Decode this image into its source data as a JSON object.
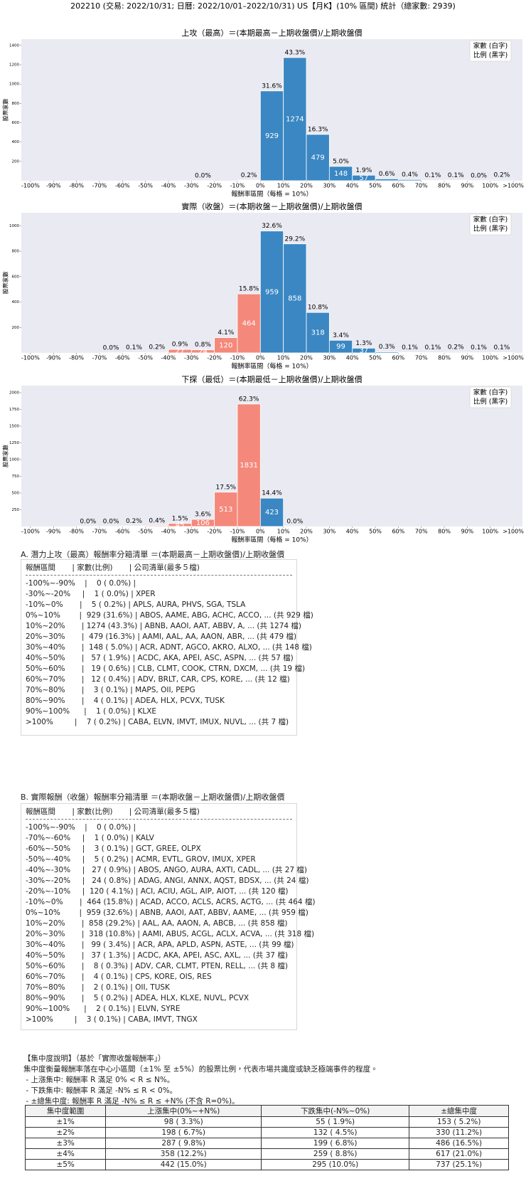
{
  "header": {
    "title": "202210 (交易: 2022/10/31; 日曆: 2022/10/01–2022/10/31) US【月K】(10% 區間) 統計（總家數: 2939)"
  },
  "chart_data": [
    {
      "type": "histogram",
      "title": "上攻（最高）＝(本期最高－上期收盤價)/上期收盤價",
      "xlabel": "報酬率區間（每格 = 10%）",
      "ylabel": "股票家數",
      "bins": [
        -100,
        -90,
        -80,
        -70,
        -60,
        -50,
        -40,
        -30,
        -20,
        -10,
        0,
        10,
        20,
        30,
        40,
        50,
        60,
        70,
        80,
        90,
        100,
        110
      ],
      "values": [
        0,
        0,
        0,
        0,
        0,
        0,
        0,
        1,
        0,
        5,
        929,
        1274,
        479,
        148,
        57,
        19,
        12,
        3,
        4,
        1,
        7
      ],
      "percent_labels": [
        null,
        null,
        null,
        null,
        null,
        null,
        null,
        "0.0%",
        null,
        "0.2%",
        "31.6%",
        "43.3%",
        "16.3%",
        "5.0%",
        "1.9%",
        "0.6%",
        "0.4%",
        "0.1%",
        "0.1%",
        "0.0%",
        "0.2%"
      ],
      "xlim": [
        -104,
        114
      ],
      "xticks": [
        {
          "value": -100,
          "label": "-100%"
        },
        {
          "value": -90,
          "label": "-90%"
        },
        {
          "value": -80,
          "label": "-80%"
        },
        {
          "value": -70,
          "label": "-70%"
        },
        {
          "value": -60,
          "label": "-60%"
        },
        {
          "value": -50,
          "label": "-50%"
        },
        {
          "value": -40,
          "label": "-40%"
        },
        {
          "value": -30,
          "label": "-30%"
        },
        {
          "value": -20,
          "label": "-20%"
        },
        {
          "value": -10,
          "label": "-10%"
        },
        {
          "value": 0,
          "label": "0%"
        },
        {
          "value": 10,
          "label": "10%"
        },
        {
          "value": 20,
          "label": "20%"
        },
        {
          "value": 30,
          "label": "30%"
        },
        {
          "value": 40,
          "label": "40%"
        },
        {
          "value": 50,
          "label": "50%"
        },
        {
          "value": 60,
          "label": "60%"
        },
        {
          "value": 70,
          "label": "70%"
        },
        {
          "value": 80,
          "label": "80%"
        },
        {
          "value": 90,
          "label": "90%"
        },
        {
          "value": 100,
          "label": "100%"
        },
        {
          "value": 110,
          "label": ">100%"
        }
      ],
      "ylim": [
        0,
        1465
      ],
      "yticks": [
        200,
        400,
        600,
        800,
        1000,
        1200,
        1400
      ],
      "negative_color": "#f4897b",
      "positive_color": "#3a87c3",
      "legend": [
        "家數 (白字)",
        "比例 (黑字)"
      ],
      "legend_position": "upper right"
    },
    {
      "type": "histogram",
      "title": "實際（收盤）＝(本期收盤－上期收盤價)/上期收盤價",
      "xlabel": "報酬率區間（每格 = 10%）",
      "ylabel": "股票家數",
      "bins": [
        -100,
        -90,
        -80,
        -70,
        -60,
        -50,
        -40,
        -30,
        -20,
        -10,
        0,
        10,
        20,
        30,
        40,
        50,
        60,
        70,
        80,
        90,
        100,
        110
      ],
      "values": [
        0,
        0,
        0,
        1,
        3,
        5,
        27,
        24,
        120,
        464,
        959,
        858,
        318,
        99,
        37,
        8,
        4,
        2,
        5,
        2,
        3
      ],
      "percent_labels": [
        null,
        null,
        null,
        "0.0%",
        "0.1%",
        "0.2%",
        "0.9%",
        "0.8%",
        "4.1%",
        "15.8%",
        "32.6%",
        "29.2%",
        "10.8%",
        "3.4%",
        "1.3%",
        "0.3%",
        "0.1%",
        "0.1%",
        "0.2%",
        "0.1%",
        "0.1%"
      ],
      "xlim": [
        -104,
        114
      ],
      "xticks": [
        {
          "value": -100,
          "label": "-100%"
        },
        {
          "value": -90,
          "label": "-90%"
        },
        {
          "value": -80,
          "label": "-80%"
        },
        {
          "value": -70,
          "label": "-70%"
        },
        {
          "value": -60,
          "label": "-60%"
        },
        {
          "value": -50,
          "label": "-50%"
        },
        {
          "value": -40,
          "label": "-40%"
        },
        {
          "value": -30,
          "label": "-30%"
        },
        {
          "value": -20,
          "label": "-20%"
        },
        {
          "value": -10,
          "label": "-10%"
        },
        {
          "value": 0,
          "label": "0%"
        },
        {
          "value": 10,
          "label": "10%"
        },
        {
          "value": 20,
          "label": "20%"
        },
        {
          "value": 30,
          "label": "30%"
        },
        {
          "value": 40,
          "label": "40%"
        },
        {
          "value": 50,
          "label": "50%"
        },
        {
          "value": 60,
          "label": "60%"
        },
        {
          "value": 70,
          "label": "70%"
        },
        {
          "value": 80,
          "label": "80%"
        },
        {
          "value": 90,
          "label": "90%"
        },
        {
          "value": 100,
          "label": "100%"
        },
        {
          "value": 110,
          "label": ">100%"
        }
      ],
      "ylim": [
        0,
        1103
      ],
      "yticks": [
        200,
        400,
        600,
        800,
        1000
      ],
      "negative_color": "#f4897b",
      "positive_color": "#3a87c3",
      "legend": [
        "家數 (白字)",
        "比例 (黑字)"
      ],
      "legend_position": "upper right"
    },
    {
      "type": "histogram",
      "title": "下探（最低）＝(本期最低－上期收盤價)/上期收盤價",
      "xlabel": "報酬率區間（每格 = 10%）",
      "ylabel": "股票家數",
      "bins": [
        -100,
        -90,
        -80,
        -70,
        -60,
        -50,
        -40,
        -30,
        -20,
        -10,
        0,
        10,
        20,
        30,
        40,
        50,
        60,
        70,
        80,
        90,
        100,
        110
      ],
      "values": [
        0,
        0,
        1,
        1,
        6,
        12,
        45,
        106,
        513,
        1831,
        423,
        1,
        0,
        0,
        0,
        0,
        0,
        0,
        0,
        0,
        0
      ],
      "percent_labels": [
        null,
        null,
        "0.0%",
        "0.0%",
        "0.2%",
        "0.4%",
        "1.5%",
        "3.6%",
        "17.5%",
        "62.3%",
        "14.4%",
        "0.0%",
        null,
        null,
        null,
        null,
        null,
        null,
        null,
        null,
        null
      ],
      "xlim": [
        -104,
        114
      ],
      "xticks": [
        {
          "value": -100,
          "label": "-100%"
        },
        {
          "value": -90,
          "label": "-90%"
        },
        {
          "value": -80,
          "label": "-80%"
        },
        {
          "value": -70,
          "label": "-70%"
        },
        {
          "value": -60,
          "label": "-60%"
        },
        {
          "value": -50,
          "label": "-50%"
        },
        {
          "value": -40,
          "label": "-40%"
        },
        {
          "value": -30,
          "label": "-30%"
        },
        {
          "value": -20,
          "label": "-20%"
        },
        {
          "value": -10,
          "label": "-10%"
        },
        {
          "value": 0,
          "label": "0%"
        },
        {
          "value": 10,
          "label": "10%"
        },
        {
          "value": 20,
          "label": "20%"
        },
        {
          "value": 30,
          "label": "30%"
        },
        {
          "value": 40,
          "label": "40%"
        },
        {
          "value": 50,
          "label": "50%"
        },
        {
          "value": 60,
          "label": "60%"
        },
        {
          "value": 70,
          "label": "70%"
        },
        {
          "value": 80,
          "label": "80%"
        },
        {
          "value": 90,
          "label": "90%"
        },
        {
          "value": 100,
          "label": "100%"
        },
        {
          "value": 110,
          "label": ">100%"
        }
      ],
      "ylim": [
        0,
        2106
      ],
      "yticks": [
        250,
        500,
        750,
        1000,
        1250,
        1500,
        1750,
        2000
      ],
      "negative_color": "#f4897b",
      "positive_color": "#3a87c3",
      "legend": [
        "家數 (白字)",
        "比例 (黑字)"
      ],
      "legend_position": "upper right"
    }
  ],
  "section_a": {
    "title": "A. 潛力上攻（最高）報酬率分箱清單 ＝(本期最高－上期收盤價)/上期收盤價",
    "header": "報酬區間       | 家數(比例)       | 公司清單(最多５檔)",
    "rows": [
      "-100%~-90%    |    0 ( 0.0%) |",
      "-30%~-20%     |    1 ( 0.0%) | XPER",
      "-10%~0%       |    5 ( 0.2%) | APLS, AURA, PHVS, SGA, TSLA",
      "0%~10%        |  929 (31.6%) | ABOS, AAME, ABG, ACHC, ACCO, ... (共 929 檔)",
      "10%~20%       | 1274 (43.3%) | ABNB, AAOI, AAT, ABBV, A, ... (共 1274 檔)",
      "20%~30%       |  479 (16.3%) | AAMI, AAL, AA, AAON, ABR, ... (共 479 檔)",
      "30%~40%       |  148 ( 5.0%) | ACR, ADNT, AGCO, AKRO, ALXO, ... (共 148 檔)",
      "40%~50%       |   57 ( 1.9%) | ACDC, AKA, APEI, ASC, ASPN, ... (共 57 檔)",
      "50%~60%       |   19 ( 0.6%) | CLB, CLMT, COOK, CTRN, DXCM, ... (共 19 檔)",
      "60%~70%       |   12 ( 0.4%) | ADV, BRLT, CAR, CPS, KORE, ... (共 12 檔)",
      "70%~80%       |    3 ( 0.1%) | MAPS, OII, PEPG",
      "80%~90%       |    4 ( 0.1%) | ADEA, HLX, PCVX, TUSK",
      "90%~100%      |    1 ( 0.0%) | KLXE",
      ">100%         |    7 ( 0.2%) | CABA, ELVN, IMVT, IMUX, NUVL, ... (共 7 檔)"
    ]
  },
  "section_b": {
    "title": "B. 實際報酬（收盤）報酬率分箱清單 ＝(本期收盤－上期收盤價)/上期收盤價",
    "header": "報酬區間       | 家數(比例)       | 公司清單(最多５檔)",
    "rows": [
      "-100%~-90%    |    0 ( 0.0%) |",
      "-70%~-60%     |    1 ( 0.0%) | KALV",
      "-60%~-50%     |    3 ( 0.1%) | GCT, GREE, OLPX",
      "-50%~-40%     |    5 ( 0.2%) | ACMR, EVTL, GROV, IMUX, XPER",
      "-40%~-30%     |   27 ( 0.9%) | ABOS, ANGO, AURA, AXTI, CADL, ... (共 27 檔)",
      "-30%~-20%     |   24 ( 0.8%) | ADAG, ANGI, ANNX, AQST, BDSX, ... (共 24 檔)",
      "-20%~-10%     |  120 ( 4.1%) | ACI, ACIU, AGL, AIP, AIOT, ... (共 120 檔)",
      "-10%~0%       |  464 (15.8%) | ACAD, ACCO, ACLS, ACRS, ACTG, ... (共 464 檔)",
      "0%~10%        |  959 (32.6%) | ABNB, AAOI, AAT, ABBV, AAME, ... (共 959 檔)",
      "10%~20%       |  858 (29.2%) | AAL, AA, AAON, A, ABCB, ... (共 858 檔)",
      "20%~30%       |  318 (10.8%) | AAMI, ABUS, ACGL, ACLX, ACVA, ... (共 318 檔)",
      "30%~40%       |   99 ( 3.4%) | ACR, APA, APLD, ASPN, ASTE, ... (共 99 檔)",
      "40%~50%       |   37 ( 1.3%) | ACDC, AKA, APEI, ASC, AXL, ... (共 37 檔)",
      "50%~60%       |    8 ( 0.3%) | ADV, CAR, CLMT, PTEN, RELL, ... (共 8 檔)",
      "60%~70%       |    4 ( 0.1%) | CPS, KORE, OIS, RES",
      "70%~80%       |    2 ( 0.1%) | OII, TUSK",
      "80%~90%       |    5 ( 0.2%) | ADEA, HLX, KLXE, NUVL, PCVX",
      "90%~100%      |    2 ( 0.1%) | ELVN, SYRE",
      ">100%         |    3 ( 0.1%) | CABA, IMVT, TNGX"
    ]
  },
  "concentration": {
    "title": "【集中度說明】（基於「實際收盤報酬率」）",
    "description": "集中度衡量報酬率落在中心小區間（±1% 至 ±5%）的股票比例，代表市場共識度或缺乏極端事件的程度。",
    "bullets": [
      " - 上漲集中: 報酬率 R 滿足 0% < R ≤ N%。",
      " - 下跌集中: 報酬率 R 滿足 -N% ≤ R < 0%。",
      " - ±總集中度: 報酬率 R 滿足 -N% ≤ R ≤ +N% (不含 R=0%)。"
    ],
    "table": {
      "header": [
        "集中度範圍",
        "上漲集中(0%~+N%)",
        "下跌集中(-N%~0%)",
        "±總集中度"
      ],
      "rows": [
        [
          "±1%",
          "98 ( 3.3%)",
          "55 ( 1.9%)",
          "153 ( 5.2%)"
        ],
        [
          "±2%",
          "198 ( 6.7%)",
          "132 ( 4.5%)",
          "330 (11.2%)"
        ],
        [
          "±3%",
          "287 ( 9.8%)",
          "199 ( 6.8%)",
          "486 (16.5%)"
        ],
        [
          "±4%",
          "358 (12.2%)",
          "259 ( 8.8%)",
          "617 (21.0%)"
        ],
        [
          "±5%",
          "442 (15.0%)",
          "295 (10.0%)",
          "737 (25.1%)"
        ]
      ]
    }
  }
}
